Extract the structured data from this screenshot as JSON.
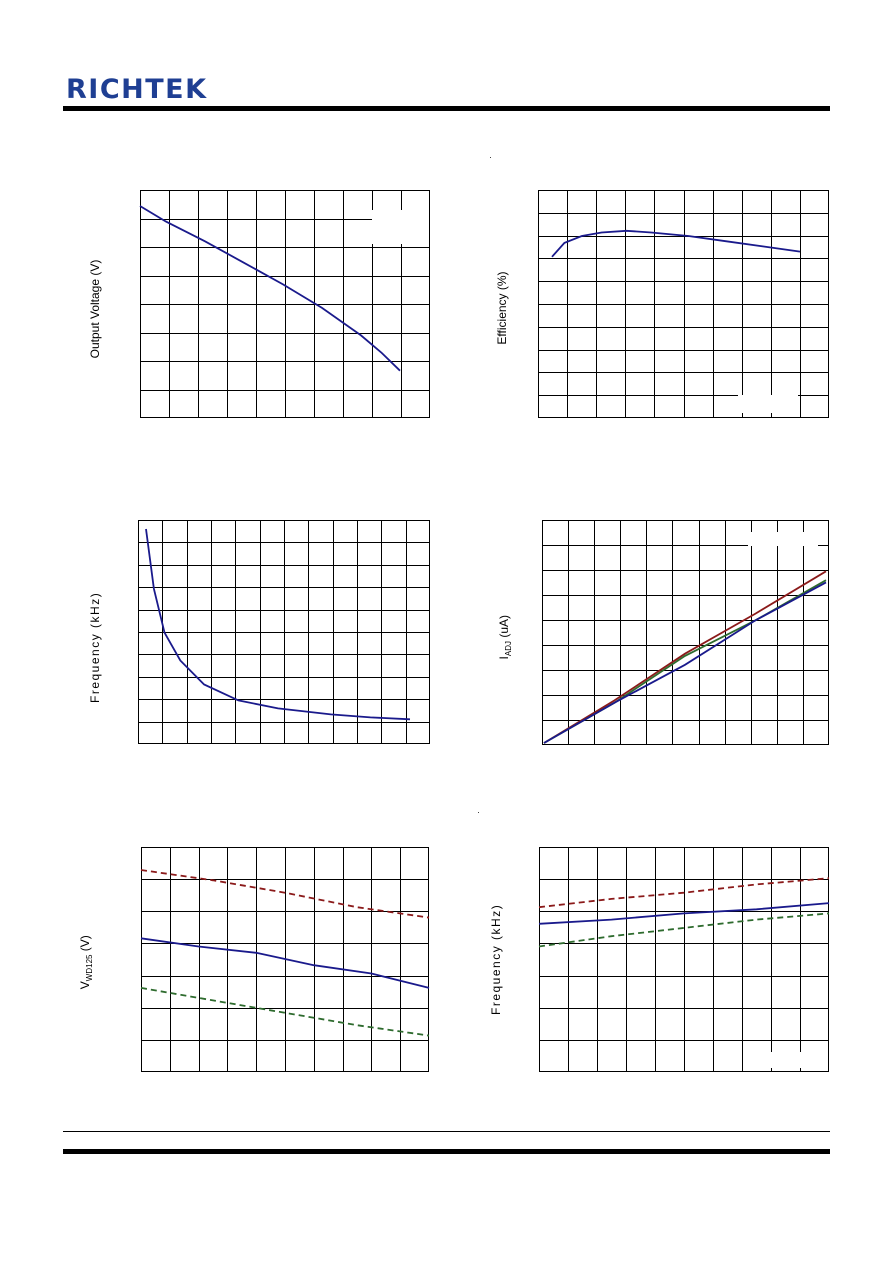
{
  "header": {
    "logo_text": "RICHTEK"
  },
  "colors": {
    "brand": "#1f3f93",
    "blue": "#1a1a8c",
    "red": "#8b1a1a",
    "green": "#2e6b2e",
    "grid": "#000000"
  },
  "charts": {
    "output_voltage": {
      "ylabel": "Output Voltage (V)"
    },
    "efficiency": {
      "ylabel": "Efficiency (%)"
    },
    "frequency_1": {
      "ylabel": "Frequency (kHz)"
    },
    "iadj": {
      "ylabel_main": "I",
      "ylabel_sub": "ADJ",
      "ylabel_rest": " (uA)"
    },
    "vwd": {
      "ylabel_main": "V",
      "ylabel_sub": "WD125",
      "ylabel_rest": "  (V)"
    },
    "frequency_2": {
      "ylabel": "Frequency (kHz)"
    }
  },
  "chart_data": [
    {
      "type": "line",
      "series": [
        {
          "values": [
            [
              0,
              1.0
            ],
            [
              0.1,
              0.92
            ],
            [
              0.25,
              0.82
            ],
            [
              0.4,
              0.71
            ],
            [
              0.55,
              0.6
            ],
            [
              0.7,
              0.48
            ],
            [
              0.85,
              0.34
            ],
            [
              0.93,
              0.25
            ],
            [
              1.0,
              0.16
            ]
          ]
        }
      ]
    },
    {
      "type": "line",
      "series": [
        {
          "values": [
            [
              0,
              0.72
            ],
            [
              0.05,
              0.8
            ],
            [
              0.12,
              0.84
            ],
            [
              0.2,
              0.86
            ],
            [
              0.3,
              0.87
            ],
            [
              0.4,
              0.86
            ],
            [
              0.55,
              0.84
            ],
            [
              0.7,
              0.81
            ],
            [
              0.85,
              0.78
            ],
            [
              1.0,
              0.75
            ]
          ]
        }
      ]
    },
    {
      "type": "line",
      "series": [
        {
          "values": [
            [
              0,
              1.0
            ],
            [
              0.03,
              0.7
            ],
            [
              0.07,
              0.48
            ],
            [
              0.13,
              0.34
            ],
            [
              0.22,
              0.22
            ],
            [
              0.35,
              0.14
            ],
            [
              0.5,
              0.1
            ],
            [
              0.7,
              0.07
            ],
            [
              0.85,
              0.055
            ],
            [
              1.0,
              0.045
            ]
          ]
        }
      ]
    },
    {
      "type": "line",
      "series": [
        {
          "color_key": "red",
          "values": [
            [
              0,
              0.0
            ],
            [
              0.25,
              0.2
            ],
            [
              0.5,
              0.41
            ],
            [
              0.75,
              0.59
            ],
            [
              1.0,
              0.78
            ]
          ]
        },
        {
          "color_key": "green",
          "values": [
            [
              0,
              0.0
            ],
            [
              0.25,
              0.19
            ],
            [
              0.5,
              0.4
            ],
            [
              0.75,
              0.56
            ],
            [
              1.0,
              0.74
            ]
          ]
        },
        {
          "color_key": "blue",
          "values": [
            [
              0,
              0.0
            ],
            [
              0.25,
              0.19
            ],
            [
              0.5,
              0.36
            ],
            [
              0.75,
              0.56
            ],
            [
              1.0,
              0.73
            ]
          ]
        }
      ]
    },
    {
      "type": "line",
      "series": [
        {
          "color_key": "red",
          "dash": true,
          "values": [
            [
              0,
              0.9
            ],
            [
              0.25,
              0.85
            ],
            [
              0.5,
              0.79
            ],
            [
              0.75,
              0.72
            ],
            [
              1.0,
              0.67
            ]
          ]
        },
        {
          "color_key": "blue",
          "values": [
            [
              0,
              0.57
            ],
            [
              0.2,
              0.53
            ],
            [
              0.4,
              0.5
            ],
            [
              0.6,
              0.44
            ],
            [
              0.8,
              0.4
            ],
            [
              1.0,
              0.33
            ]
          ]
        },
        {
          "color_key": "green",
          "dash": true,
          "values": [
            [
              0,
              0.33
            ],
            [
              0.25,
              0.27
            ],
            [
              0.5,
              0.21
            ],
            [
              0.75,
              0.15
            ],
            [
              1.0,
              0.1
            ]
          ]
        }
      ]
    },
    {
      "type": "line",
      "series": [
        {
          "color_key": "red",
          "dash": true,
          "values": [
            [
              0,
              0.72
            ],
            [
              0.25,
              0.76
            ],
            [
              0.5,
              0.79
            ],
            [
              0.75,
              0.83
            ],
            [
              1.0,
              0.86
            ]
          ]
        },
        {
          "color_key": "blue",
          "values": [
            [
              0,
              0.64
            ],
            [
              0.25,
              0.66
            ],
            [
              0.5,
              0.69
            ],
            [
              0.75,
              0.71
            ],
            [
              1.0,
              0.74
            ]
          ]
        },
        {
          "color_key": "green",
          "dash": true,
          "values": [
            [
              0,
              0.53
            ],
            [
              0.25,
              0.58
            ],
            [
              0.5,
              0.62
            ],
            [
              0.75,
              0.66
            ],
            [
              1.0,
              0.69
            ]
          ]
        }
      ]
    }
  ]
}
